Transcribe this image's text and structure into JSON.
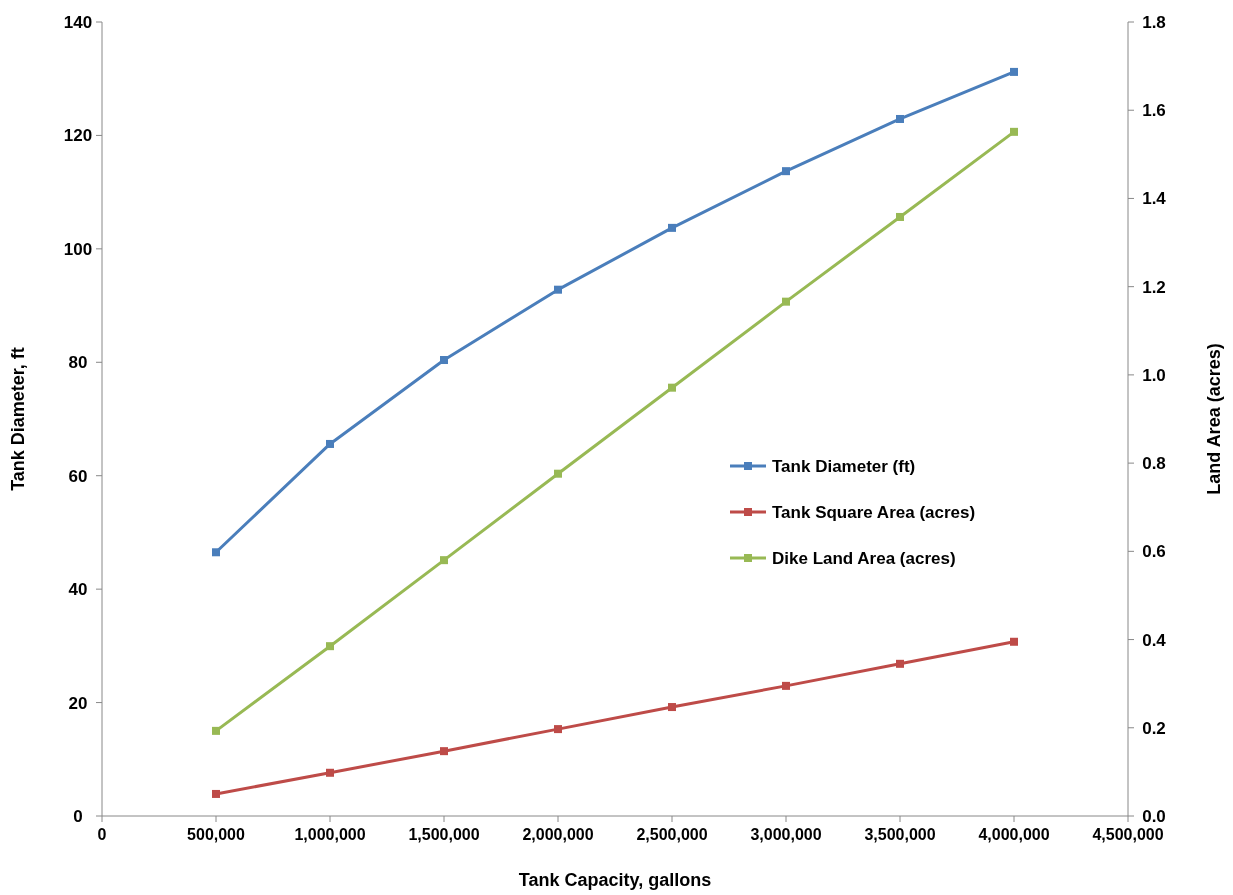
{
  "chart_data": {
    "type": "line",
    "xlabel": "Tank Capacity, gallons",
    "ylabel": "Tank Diameter, ft",
    "y2label": "Land Area (acres)",
    "x": [
      500000,
      1000000,
      1500000,
      2000000,
      2500000,
      3000000,
      3500000,
      4000000
    ],
    "series": [
      {
        "name": "Tank Diameter (ft)",
        "color": "#4a7ebb",
        "values": [
          46.5,
          65.6,
          80.4,
          92.8,
          103.7,
          113.7,
          122.9,
          131.2
        ]
      },
      {
        "name": "Tank Square Area (acres)",
        "color": "#be4b48",
        "axis": "y2",
        "values": [
          0.05,
          0.098,
          0.147,
          0.197,
          0.247,
          0.295,
          0.345,
          0.395
        ]
      },
      {
        "name": "Dike Land Area (acres)",
        "color": "#98b954",
        "axis": "y2",
        "values": [
          0.193,
          0.385,
          0.58,
          0.776,
          0.971,
          1.166,
          1.358,
          1.551
        ]
      }
    ],
    "xlim": [
      0,
      4500000
    ],
    "xticks": [
      {
        "value": 0,
        "label": "0"
      },
      {
        "value": 500000,
        "label": "500,000"
      },
      {
        "value": 1000000,
        "label": "1,000,000"
      },
      {
        "value": 1500000,
        "label": "1,500,000"
      },
      {
        "value": 2000000,
        "label": "2,000,000"
      },
      {
        "value": 2500000,
        "label": "2,500,000"
      },
      {
        "value": 3000000,
        "label": "3,000,000"
      },
      {
        "value": 3500000,
        "label": "3,500,000"
      },
      {
        "value": 4000000,
        "label": "4,000,000"
      },
      {
        "value": 4500000,
        "label": "4,500,000"
      }
    ],
    "ylim": [
      0,
      140
    ],
    "yticks": [
      0,
      20,
      40,
      60,
      80,
      100,
      120,
      140
    ],
    "y2lim": [
      0,
      1.8
    ],
    "y2ticks": [
      {
        "value": 0,
        "label": "0.0"
      },
      {
        "value": 0.2,
        "label": "0.2"
      },
      {
        "value": 0.4,
        "label": "0.4"
      },
      {
        "value": 0.6,
        "label": "0.6"
      },
      {
        "value": 0.8,
        "label": "0.8"
      },
      {
        "value": 1,
        "label": "1.0"
      },
      {
        "value": 1.2,
        "label": "1.2"
      },
      {
        "value": 1.4,
        "label": "1.4"
      },
      {
        "value": 1.6,
        "label": "1.6"
      },
      {
        "value": 1.8,
        "label": "1.8"
      }
    ],
    "grid": false,
    "legend": "right",
    "marker": "square",
    "line_style": "solid"
  }
}
